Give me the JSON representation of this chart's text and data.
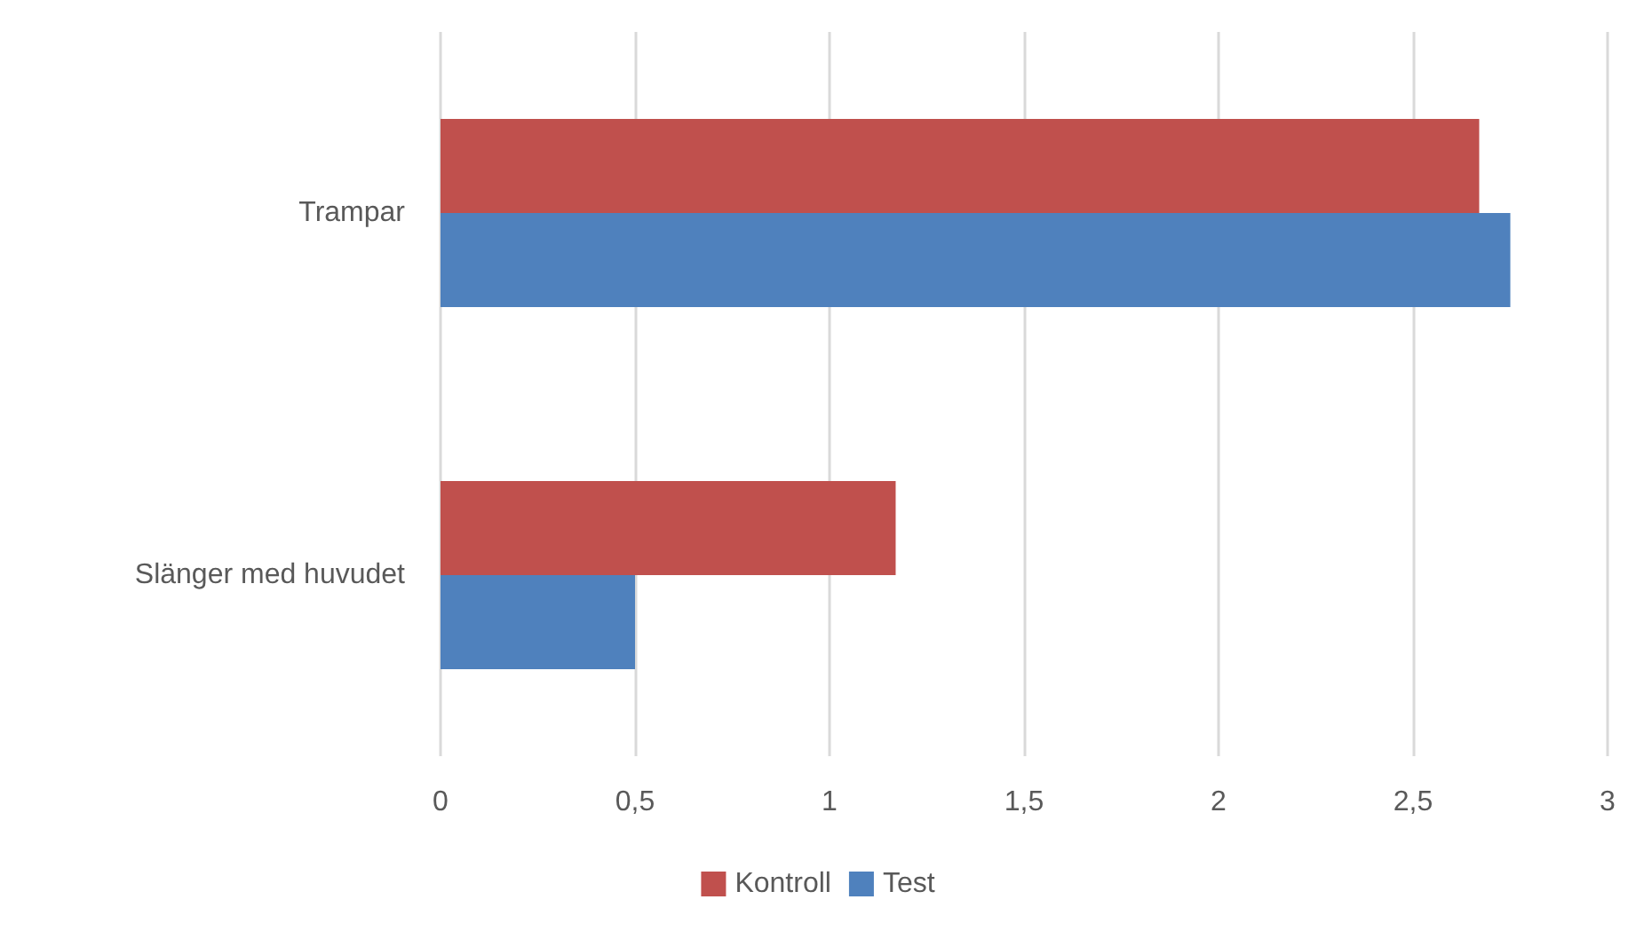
{
  "chart_data": {
    "type": "bar",
    "orientation": "horizontal",
    "categories": [
      "Trampar",
      "Slänger med huvudet"
    ],
    "series": [
      {
        "name": "Kontroll",
        "color": "#c0504d",
        "values": [
          2.67,
          1.17
        ]
      },
      {
        "name": "Test",
        "color": "#4f81bd",
        "values": [
          2.75,
          0.5
        ]
      }
    ],
    "xlim": [
      0,
      3
    ],
    "xticks": [
      0,
      {
        "value": 0.5,
        "label": "0,5"
      },
      1,
      {
        "value": 1.5,
        "label": "1,5"
      },
      2,
      {
        "value": 2.5,
        "label": "2,5"
      },
      3
    ],
    "grid": "x",
    "legend": "bottom"
  }
}
